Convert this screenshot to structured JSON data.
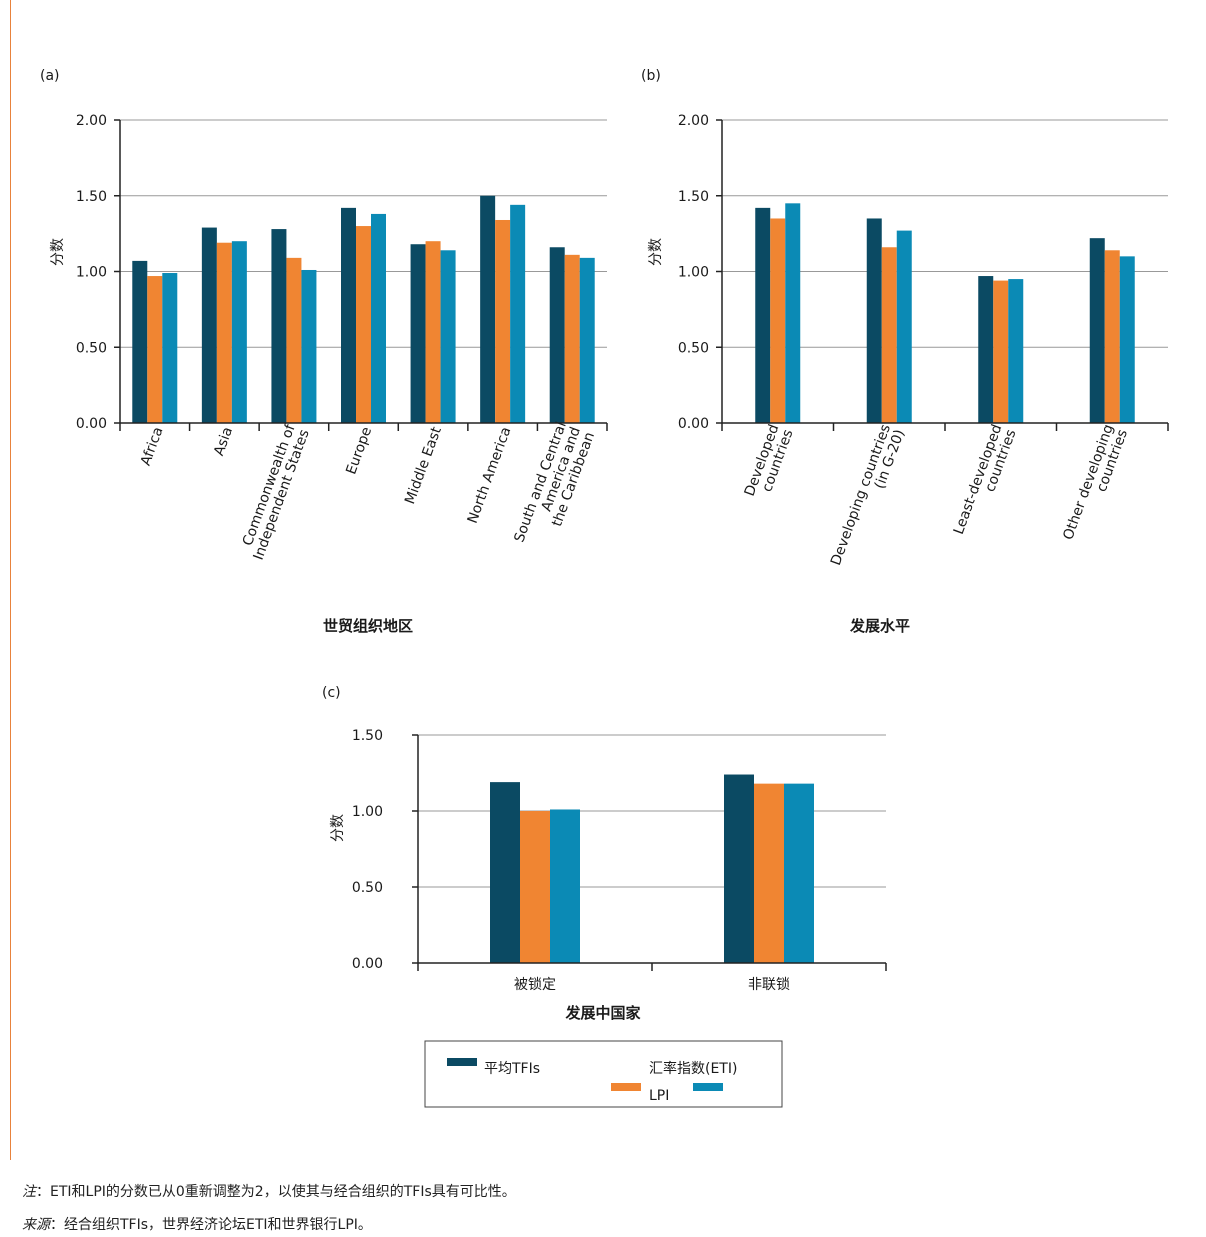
{
  "colors": {
    "tfi": "#0b4a63",
    "eti": "#f08532",
    "lpi": "#0b8ab5",
    "grid": "#999999",
    "axis": "#222222"
  },
  "chart_data": [
    {
      "panel": "(a)",
      "type": "bar",
      "ylabel": "分数",
      "xlabel": "世贸组织地区",
      "ylim": [
        0,
        2
      ],
      "yticks": [
        "0.00",
        "0.50",
        "1.00",
        "1.50",
        "2.00"
      ],
      "categories": [
        [
          "Africa"
        ],
        [
          "Asia"
        ],
        [
          "Commonwealth of",
          "Independent States"
        ],
        [
          "Europe"
        ],
        [
          "Middle East"
        ],
        [
          "North America"
        ],
        [
          "South and Central",
          "America and",
          "the Caribbean"
        ]
      ],
      "series": [
        {
          "key": "tfi",
          "values": [
            1.07,
            1.29,
            1.28,
            1.42,
            1.18,
            1.5,
            1.16
          ]
        },
        {
          "key": "eti",
          "values": [
            0.97,
            1.19,
            1.09,
            1.3,
            1.2,
            1.34,
            1.11
          ]
        },
        {
          "key": "lpi",
          "values": [
            0.99,
            1.2,
            1.01,
            1.38,
            1.14,
            1.44,
            1.09
          ]
        }
      ]
    },
    {
      "panel": "(b)",
      "type": "bar",
      "ylabel": "分数",
      "xlabel": "发展水平",
      "ylim": [
        0,
        2
      ],
      "yticks": [
        "0.00",
        "0.50",
        "1.00",
        "1.50",
        "2.00"
      ],
      "categories": [
        [
          "Developed",
          "countries"
        ],
        [
          "Developing countries",
          "(in G-20)"
        ],
        [
          "Least-developed",
          "countries"
        ],
        [
          "Other developing",
          "countries"
        ]
      ],
      "series": [
        {
          "key": "tfi",
          "values": [
            1.42,
            1.35,
            0.97,
            1.22
          ]
        },
        {
          "key": "eti",
          "values": [
            1.35,
            1.16,
            0.94,
            1.14
          ]
        },
        {
          "key": "lpi",
          "values": [
            1.45,
            1.27,
            0.95,
            1.1
          ]
        }
      ]
    },
    {
      "panel": "(c)",
      "type": "bar",
      "ylabel": "分数",
      "xlabel": "发展中国家",
      "ylim": [
        0,
        1.5
      ],
      "yticks": [
        "0.00",
        "0.50",
        "1.00",
        "1.50"
      ],
      "categories": [
        [
          "被锁定"
        ],
        [
          "非联锁"
        ]
      ],
      "series": [
        {
          "key": "tfi",
          "values": [
            1.19,
            1.24
          ]
        },
        {
          "key": "eti",
          "values": [
            1.0,
            1.18
          ]
        },
        {
          "key": "lpi",
          "values": [
            1.01,
            1.18
          ]
        }
      ]
    }
  ],
  "legend": {
    "tfi": "平均TFIs",
    "eti_label": "汇率指数(ETI)",
    "lpi": "LPI"
  },
  "notes": {
    "note_prefix": "注",
    "note_text": "：ETI和LPI的分数已从0重新调整为2，以使其与经合组织的TFIs具有可比性。",
    "source_prefix": "来源",
    "source_text": "：经合组织TFIs，世界经济论坛ETI和世界银行LPI。"
  }
}
